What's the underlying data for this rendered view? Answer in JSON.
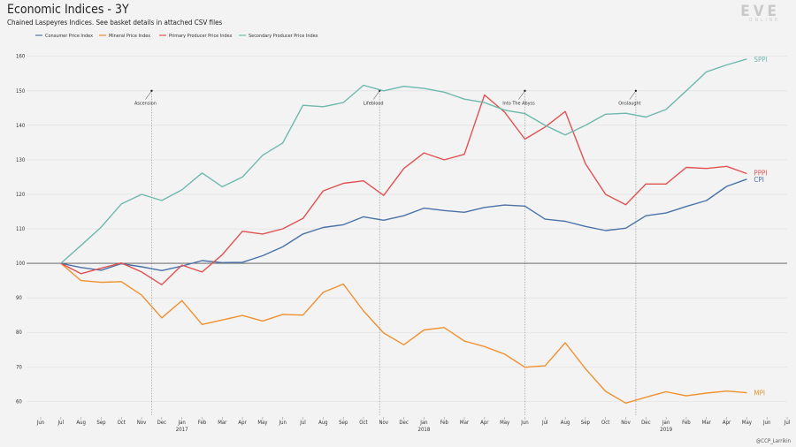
{
  "header": {
    "title": "Economic Indices - 3Y",
    "subtitle": "Chained Laspeyres Indices. See basket details in attached CSV files"
  },
  "logo": {
    "text": "EVE",
    "subtext": "ONLINE"
  },
  "credit": "@CCP_Larrikin",
  "chart_data": {
    "type": "line",
    "months": [
      "Jun",
      "Jul",
      "Aug",
      "Sep",
      "Oct",
      "Nov",
      "Dec",
      "Jan",
      "Feb",
      "Mar",
      "Apr",
      "May",
      "Jun",
      "Jul",
      "Aug",
      "Sep",
      "Oct",
      "Nov",
      "Dec",
      "Jan",
      "Feb",
      "Mar",
      "Apr",
      "May",
      "Jun",
      "Jul",
      "Aug",
      "Sep",
      "Oct",
      "Nov",
      "Dec",
      "Jan",
      "Feb",
      "Mar",
      "Apr",
      "May",
      "Jun",
      "Jul"
    ],
    "year_labels": [
      {
        "index": 7,
        "label": "2017"
      },
      {
        "index": 19,
        "label": "2018"
      },
      {
        "index": 31,
        "label": "2019"
      }
    ],
    "y_ticks": [
      60,
      70,
      80,
      90,
      100,
      110,
      120,
      130,
      140,
      150,
      160
    ],
    "ylim": [
      56,
      163
    ],
    "baseline": 100,
    "series": [
      {
        "name": "Consumer Price Index",
        "short": "CPI",
        "color": "#4a72a8",
        "start_index": 1,
        "values": [
          100,
          98.8,
          98.0,
          99.9,
          99.0,
          97.9,
          99.2,
          100.8,
          100.2,
          100.3,
          102.2,
          104.8,
          108.5,
          110.4,
          111.2,
          113.5,
          112.5,
          113.8,
          116.0,
          115.3,
          114.8,
          116.2,
          116.9,
          116.6,
          112.8,
          112.2,
          110.7,
          109.5,
          110.2,
          113.8,
          114.6,
          116.5,
          118.2,
          122.3,
          124.4
        ]
      },
      {
        "name": "Mineral Price Index",
        "short": "MPI",
        "color": "#f0912f",
        "start_index": 1,
        "values": [
          100,
          95.0,
          94.5,
          94.7,
          90.8,
          84.2,
          89.2,
          82.3,
          83.6,
          84.9,
          83.3,
          85.2,
          85.0,
          91.6,
          94.0,
          86.2,
          79.8,
          76.4,
          80.7,
          81.4,
          77.5,
          75.9,
          73.7,
          69.9,
          70.3,
          77.0,
          69.5,
          62.9,
          59.5,
          61.2,
          62.8,
          61.6,
          62.4,
          63.0,
          62.5
        ]
      },
      {
        "name": "Primary Producer Price Index",
        "short": "PPPI",
        "color": "#e05252",
        "start_index": 1,
        "values": [
          100,
          97.0,
          98.6,
          100.1,
          97.5,
          93.8,
          99.5,
          97.5,
          102.5,
          109.3,
          108.5,
          110.0,
          113.0,
          121.0,
          123.2,
          123.9,
          119.7,
          127.5,
          132.0,
          130.0,
          131.6,
          148.8,
          143.8,
          136.0,
          139.5,
          144.0,
          128.9,
          120.0,
          117.0,
          123.0,
          123.0,
          127.8,
          127.5,
          128.1,
          126.0
        ]
      },
      {
        "name": "Secondary Producer Price Index",
        "short": "SPPI",
        "color": "#6fb8ae",
        "start_index": 1,
        "values": [
          100,
          105.2,
          110.5,
          117.2,
          120.0,
          118.2,
          121.3,
          126.2,
          122.2,
          125.0,
          131.3,
          134.9,
          145.8,
          145.4,
          146.6,
          151.6,
          150.0,
          151.3,
          150.7,
          149.6,
          147.6,
          146.6,
          144.4,
          143.4,
          140.0,
          137.2,
          140.0,
          143.2,
          143.5,
          142.4,
          144.6,
          150.0,
          155.5,
          157.5,
          159.2
        ]
      }
    ],
    "events": [
      {
        "label": "Ascension",
        "index": 5.5
      },
      {
        "label": "Lifeblood",
        "index": 16.8
      },
      {
        "label": "Into The Abyss",
        "index": 24.0
      },
      {
        "label": "Onslaught",
        "index": 29.5
      }
    ]
  }
}
